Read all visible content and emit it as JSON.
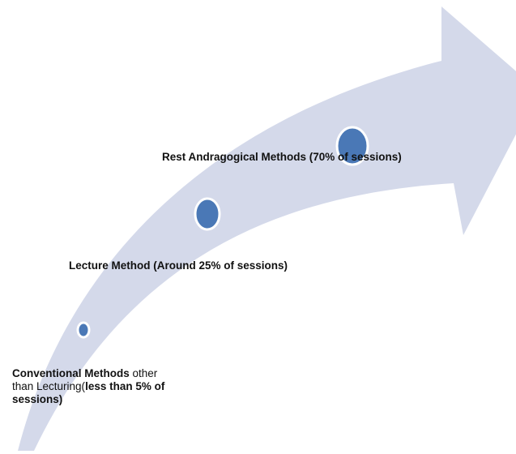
{
  "labels": [
    {
      "lines": [
        [
          {
            "text": "Rest Andragogical Methods (70% of sessions)",
            "bold": true
          }
        ]
      ]
    },
    {
      "lines": [
        [
          {
            "text": "Lecture Method (Around 25% of sessions)",
            "bold": true
          }
        ]
      ]
    },
    {
      "lines": [
        [
          {
            "text": "Conventional Methods",
            "bold": true
          },
          {
            "text": " other",
            "bold": false
          }
        ],
        [
          {
            "text": "than Lecturing(",
            "bold": false
          },
          {
            "text": "less than 5% of",
            "bold": true
          }
        ],
        [
          {
            "text": "sessions)",
            "bold": true
          }
        ]
      ]
    }
  ]
}
